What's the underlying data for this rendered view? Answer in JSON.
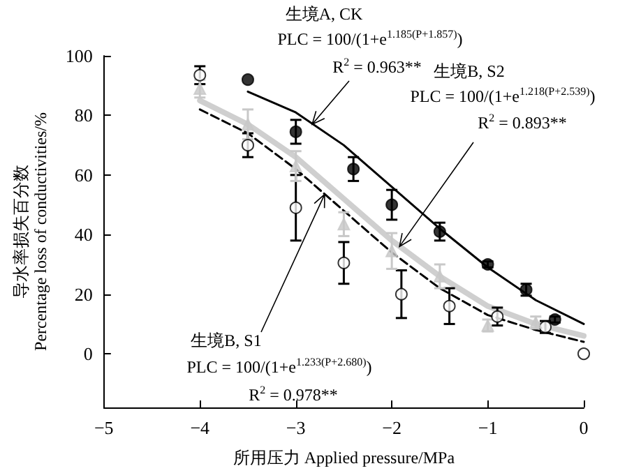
{
  "chart_data": {
    "type": "scatter",
    "xlabel": "所用压力 Applied pressure/MPa",
    "ylabel": "导水率损失百分数\nPercentage loss of conductivities/%",
    "xlim": [
      -5,
      0
    ],
    "xticks": [
      -5,
      -4,
      -3,
      -2,
      -1,
      0
    ],
    "ylim": [
      -18,
      100
    ],
    "yticks": [
      0,
      20,
      40,
      60,
      80,
      100
    ],
    "grid": false,
    "series": [
      {
        "marker": "circle",
        "color": "#000000",
        "x": [
          -3.5,
          -3,
          -2.4,
          -2,
          -1.5,
          -1,
          -0.6,
          -0.3
        ],
        "values": [
          92,
          74.5,
          62,
          50,
          41,
          30,
          21.5,
          11.5
        ],
        "errors": [
          null,
          4,
          4,
          5,
          3,
          1,
          2,
          1
        ]
      },
      {
        "marker": "circle",
        "color": "#ffffff",
        "x": [
          -4,
          -3.5,
          -3,
          -2.5,
          -1.9,
          -1.4,
          -0.9,
          -0.4,
          0
        ],
        "values": [
          93.5,
          70,
          49,
          30.5,
          20,
          16,
          12.5,
          9,
          0
        ],
        "errors": [
          3,
          4,
          11,
          7,
          8,
          6,
          3,
          2,
          null
        ]
      },
      {
        "marker": "triangle",
        "color": "#c8c8c8",
        "x": [
          -4,
          -3.5,
          -3,
          -2.5,
          -2,
          -1.5,
          -1,
          -0.5
        ],
        "values": [
          89,
          77,
          63,
          43.5,
          34.5,
          26,
          9.5,
          10.5
        ],
        "errors": [
          3,
          5,
          5,
          4,
          6,
          4,
          2,
          2
        ]
      },
      {
        "type": "line",
        "marker": "none",
        "line_style": "solid",
        "color": "#000000",
        "x": [
          -3.5,
          -3,
          -2.5,
          -2,
          -1.5,
          -1,
          -0.5,
          0
        ],
        "values": [
          88,
          81,
          70,
          56,
          42,
          29,
          18,
          10
        ]
      },
      {
        "type": "line",
        "marker": "none",
        "line_style": "solid",
        "color": "#cfcfcf",
        "x": [
          -4,
          -3.5,
          -3,
          -2.5,
          -2,
          -1.5,
          -1,
          -0.5,
          0
        ],
        "values": [
          85,
          77,
          66,
          52,
          38,
          26,
          16,
          10,
          6
        ]
      },
      {
        "type": "line",
        "marker": "none",
        "line_style": "dashed",
        "color": "#000000",
        "x": [
          -4,
          -3.5,
          -3,
          -2.5,
          -2,
          -1.5,
          -1,
          -0.5,
          0
        ],
        "values": [
          82,
          74,
          62,
          48,
          34,
          22,
          13,
          8,
          4
        ]
      }
    ],
    "annotations": [
      "生境A, CK",
      "PLC = 100/(1+e$^{1.185(P+1.857)}$)",
      {
        "text": "R$^{2}$ = 0.963**",
        "x": -2.83,
        "y": 77
      },
      "生境B, S2",
      "PLC = 100/(1+e$^{1.218(P+2.539)}$)",
      {
        "text": "R$^{2}$ = 0.893**",
        "x": -1.92,
        "y": 36
      },
      {
        "text": "生境B, S1",
        "x": -2.7,
        "y": 53.5
      },
      "PLC = 100/(1+e$^{1.233(P+2.680)}$)",
      "R$^{2}$ = 0.978**"
    ]
  }
}
